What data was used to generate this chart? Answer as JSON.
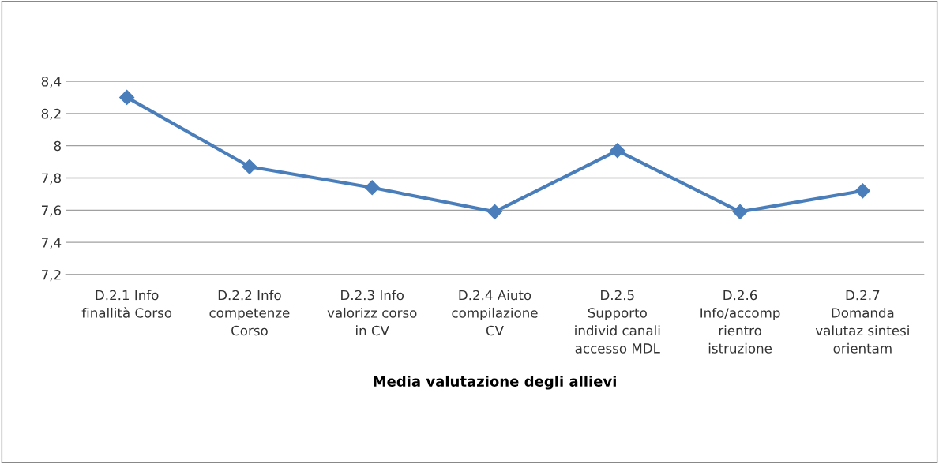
{
  "chart_data": {
    "type": "line",
    "xlabel": "Media valutazione degli allievi",
    "categories": [
      "D.2.1 Info\nfinallità Corso",
      "D.2.2 Info\ncompetenze\nCorso",
      "D.2.3 Info\nvalorizz corso\nin CV",
      "D.2.4 Aiuto\ncompilazione\nCV",
      "D.2.5\nSupporto\nindivid canali\naccesso MDL",
      "D.2.6\nInfo/accomp\nrientro\nistruzione",
      "D.2.7\nDomanda\nvalutaz sintesi\norientam"
    ],
    "series": [
      {
        "color": "#4a7ebb",
        "values": [
          8.3,
          7.87,
          7.74,
          7.59,
          7.97,
          7.59,
          7.72
        ]
      }
    ],
    "ylim": [
      7.2,
      8.4
    ],
    "yticks": [
      {
        "value": 7.2,
        "label": "7,2"
      },
      {
        "value": 7.4,
        "label": "7,4"
      },
      {
        "value": 7.6,
        "label": "7,6"
      },
      {
        "value": 7.8,
        "label": "7,8"
      },
      {
        "value": 8,
        "label": "8"
      },
      {
        "value": 8.2,
        "label": "8,2"
      },
      {
        "value": 8.4,
        "label": "8,4"
      }
    ],
    "grid": "y",
    "marker": "diamond",
    "line_style": "solid"
  }
}
